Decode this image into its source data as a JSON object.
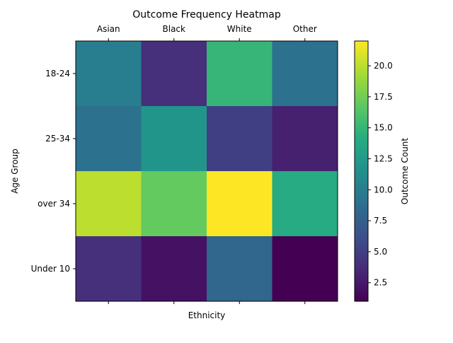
{
  "chart_data": {
    "type": "heatmap",
    "title": "Outcome Frequency Heatmap",
    "xlabel": "Ethnicity",
    "ylabel": "Age Group",
    "x_categories": [
      "Asian",
      "Black",
      "White",
      "Other"
    ],
    "y_categories": [
      "18-24",
      "25-34",
      "over 34",
      "Under 10"
    ],
    "values": [
      [
        10,
        4,
        15,
        9
      ],
      [
        9,
        12,
        5,
        3
      ],
      [
        20,
        17,
        22,
        14
      ],
      [
        4,
        2,
        8,
        1
      ]
    ],
    "colormap": "viridis",
    "colorbar": {
      "label": "Outcome Count",
      "range": [
        1,
        22
      ],
      "ticks": [
        "2.5",
        "5.0",
        "7.5",
        "10.0",
        "12.5",
        "15.0",
        "17.5",
        "20.0"
      ]
    }
  }
}
